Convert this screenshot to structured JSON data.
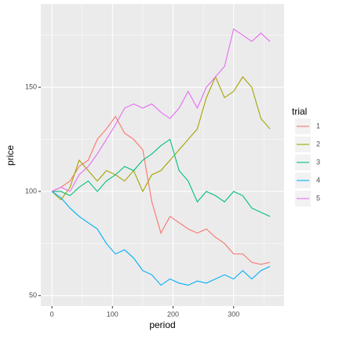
{
  "chart_data": {
    "type": "line",
    "x_label": "period",
    "y_label": "price",
    "legend_title": "trial",
    "legend_position": "right",
    "grid": true,
    "x": [
      0,
      15,
      30,
      45,
      60,
      75,
      90,
      105,
      120,
      135,
      150,
      165,
      180,
      195,
      210,
      225,
      240,
      255,
      270,
      285,
      300,
      315,
      330,
      345,
      360
    ],
    "series": [
      {
        "name": "1",
        "color": "#F8766D",
        "values": [
          100,
          102,
          105,
          112,
          115,
          125,
          130,
          136,
          128,
          125,
          120,
          95,
          80,
          88,
          85,
          82,
          80,
          82,
          78,
          75,
          70,
          70,
          66,
          65,
          66
        ]
      },
      {
        "name": "2",
        "color": "#A3A500",
        "values": [
          100,
          96,
          102,
          115,
          110,
          105,
          110,
          108,
          105,
          110,
          100,
          108,
          110,
          115,
          120,
          125,
          130,
          145,
          155,
          145,
          148,
          155,
          150,
          135,
          130
        ]
      },
      {
        "name": "3",
        "color": "#00BF7D",
        "values": [
          100,
          100,
          98,
          102,
          105,
          100,
          105,
          108,
          112,
          110,
          115,
          118,
          122,
          125,
          110,
          105,
          95,
          100,
          98,
          95,
          100,
          98,
          92,
          90,
          88
        ]
      },
      {
        "name": "4",
        "color": "#00B0F6",
        "values": [
          100,
          97,
          92,
          88,
          85,
          82,
          75,
          70,
          72,
          68,
          62,
          60,
          55,
          58,
          56,
          55,
          57,
          56,
          58,
          60,
          58,
          62,
          58,
          62,
          64
        ]
      },
      {
        "name": "5",
        "color": "#E76BF3",
        "values": [
          100,
          102,
          100,
          108,
          112,
          118,
          125,
          132,
          140,
          142,
          140,
          142,
          138,
          135,
          140,
          148,
          140,
          150,
          155,
          160,
          178,
          175,
          172,
          176,
          172
        ]
      }
    ],
    "xlim": [
      -18.25,
      383.25
    ],
    "xticks": [
      0,
      100,
      200,
      300
    ],
    "ylim": [
      45,
      190
    ],
    "yticks": [
      50,
      100,
      150
    ]
  }
}
